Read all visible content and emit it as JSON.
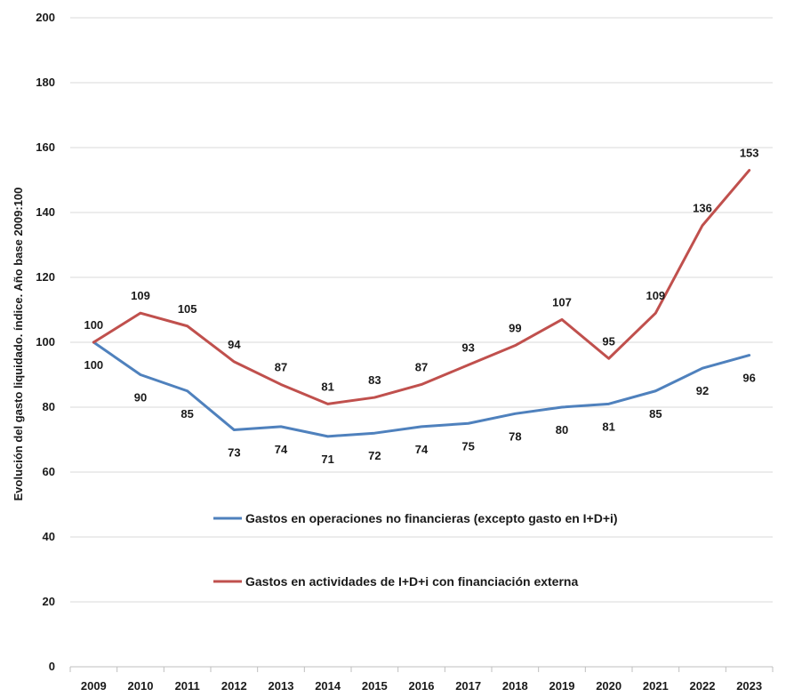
{
  "chart_data": {
    "type": "line",
    "title": "",
    "xlabel": "",
    "ylabel": "Evolución del gasto liquidado. índice. Año base 2009:100",
    "ylim": [
      0,
      200
    ],
    "yticks": [
      "0",
      "20",
      "40",
      "60",
      "80",
      "100",
      "120",
      "140",
      "160",
      "180",
      "200"
    ],
    "grid": true,
    "legend_position": "center",
    "x": [
      "2009",
      "2010",
      "2011",
      "2012",
      "2013",
      "2014",
      "2015",
      "2016",
      "2017",
      "2018",
      "2019",
      "2020",
      "2021",
      "2022",
      "2023"
    ],
    "series": [
      {
        "name": "Gastos en operaciones no financieras (excepto gasto en I+D+i)",
        "color": "#4F81BD",
        "values": [
          100,
          90,
          85,
          73,
          74,
          71,
          72,
          74,
          75,
          78,
          80,
          81,
          85,
          92,
          96
        ],
        "labels": [
          "100",
          "90",
          "85",
          "73",
          "74",
          "71",
          "72",
          "74",
          "75",
          "78",
          "80",
          "81",
          "85",
          "92",
          "96"
        ]
      },
      {
        "name": "Gastos en actividades de I+D+i con financiación externa",
        "color": "#C0504D",
        "values": [
          100,
          109,
          105,
          94,
          87,
          81,
          83,
          87,
          93,
          99,
          107,
          95,
          109,
          136,
          153
        ],
        "labels": [
          "100",
          "109",
          "105",
          "94",
          "87",
          "81",
          "83",
          "87",
          "93",
          "99",
          "107",
          "95",
          "109",
          "136",
          "153"
        ]
      }
    ]
  }
}
